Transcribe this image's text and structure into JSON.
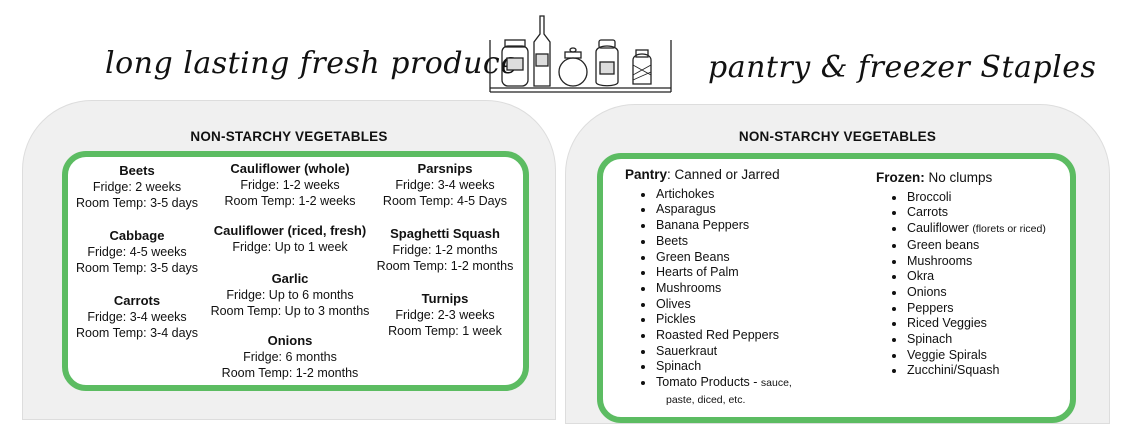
{
  "titles": {
    "left": "long lasting fresh produce",
    "right": "pantry & freezer Staples"
  },
  "left": {
    "header": "NON-STARCHY VEGETABLES",
    "columns": [
      [
        {
          "name": "Beets",
          "lines": [
            "Fridge: 2 weeks",
            "Room Temp: 3-5 days"
          ]
        },
        {
          "name": "Cabbage",
          "lines": [
            "Fridge: 4-5 weeks",
            "Room Temp: 3-5 days"
          ]
        },
        {
          "name": "Carrots",
          "lines": [
            "Fridge: 3-4 weeks",
            "Room Temp: 3-4 days"
          ]
        }
      ],
      [
        {
          "name": "Cauliflower (whole)",
          "lines": [
            "Fridge: 1-2 weeks",
            "Room Temp: 1-2 weeks"
          ]
        },
        {
          "name": "Cauliflower (riced, fresh)",
          "lines": [
            "Fridge: Up to 1 week"
          ]
        },
        {
          "name": "Garlic",
          "lines": [
            "Fridge: Up to 6 months",
            "Room Temp: Up to 3 months"
          ]
        },
        {
          "name": "Onions",
          "lines": [
            "Fridge: 6 months",
            "Room Temp: 1-2 months"
          ]
        }
      ],
      [
        {
          "name": "Parsnips",
          "lines": [
            "Fridge: 3-4 weeks",
            "Room Temp: 4-5 Days"
          ]
        },
        {
          "name": "Spaghetti Squash",
          "lines": [
            "Fridge: 1-2 months",
            "Room Temp: 1-2 months"
          ]
        },
        {
          "name": "Turnips",
          "lines": [
            "Fridge: 2-3 weeks",
            "Room Temp: 1 week"
          ]
        }
      ]
    ]
  },
  "right": {
    "header": "NON-STARCHY VEGETABLES",
    "pantry": {
      "label": "Pantry",
      "sub": ": Canned or Jarred",
      "items": [
        "Artichokes",
        "Asparagus",
        "Banana Peppers",
        "Beets",
        "Green Beans",
        "Hearts of Palm",
        "Mushrooms",
        "Olives",
        "Pickles",
        "Roasted Red Peppers",
        "Sauerkraut",
        "Spinach"
      ],
      "last": {
        "main": "Tomato Products - ",
        "note": "sauce,",
        "note2": "paste, diced, etc."
      }
    },
    "frozen": {
      "label": "Frozen:",
      "sub": " No clumps",
      "items": [
        "Broccoli",
        "Carrots"
      ],
      "cauli": {
        "main": "Cauliflower ",
        "note": "(florets or riced)"
      },
      "items2": [
        "Green beans",
        "Mushrooms",
        "Okra",
        "Onions",
        "Peppers",
        "Riced Veggies",
        "Spinach",
        "Veggie Spirals",
        "Zucchini/Squash"
      ]
    }
  },
  "colors": {
    "green": "#5cbc62",
    "panel": "#f0f0f0"
  },
  "illustration": "jars-on-shelf-icon"
}
